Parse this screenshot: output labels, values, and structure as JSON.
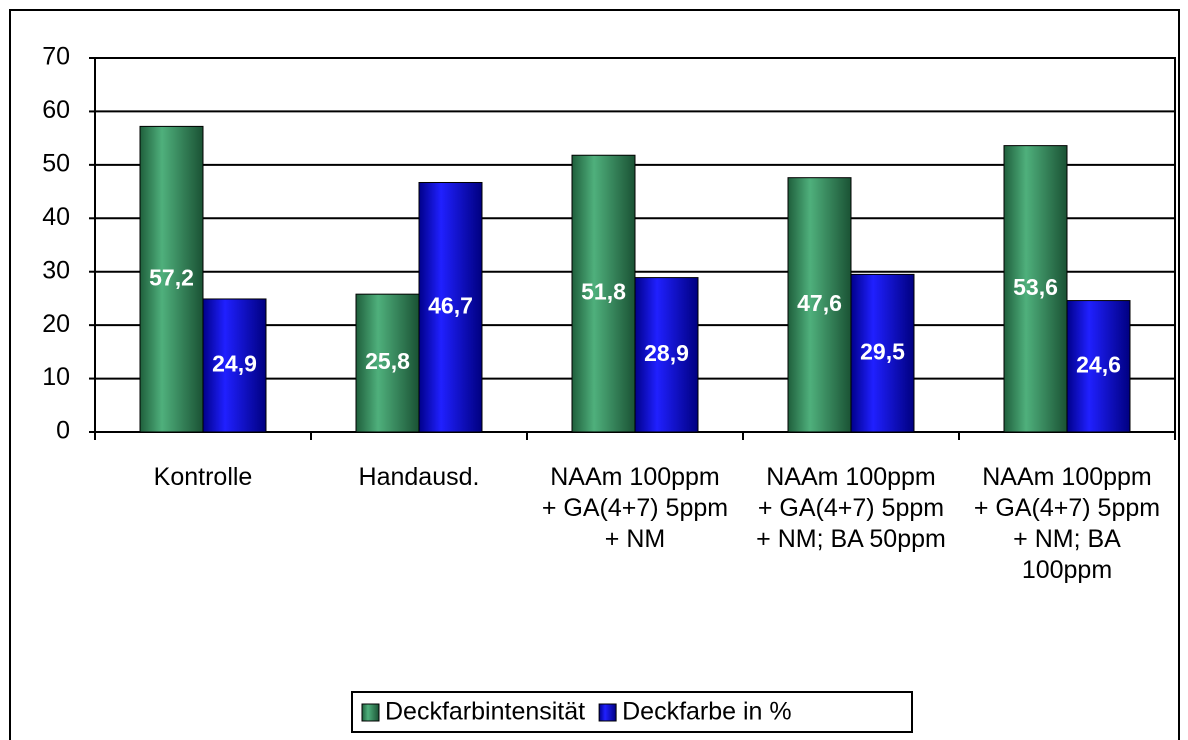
{
  "chart_data": {
    "type": "bar",
    "categories": [
      "Kontrolle",
      "Handausd.",
      "NAAm 100ppm + GA(4+7) 5ppm + NM",
      "NAAm 100ppm + GA(4+7) 5ppm + NM; BA 50ppm",
      "NAAm 100ppm + GA(4+7) 5ppm + NM; BA 100ppm"
    ],
    "series": [
      {
        "name": "Deckfarbintensität",
        "color": "#2e8b57",
        "values": [
          57.2,
          25.8,
          51.8,
          47.6,
          53.6
        ],
        "value_labels": [
          "57,2",
          "25,8",
          "51,8",
          "47,6",
          "53,6"
        ]
      },
      {
        "name": "Deckfarbe in %",
        "color": "#0000cc",
        "values": [
          24.9,
          46.7,
          28.9,
          29.5,
          24.6
        ],
        "value_labels": [
          "24,9",
          "46,7",
          "28,9",
          "29,5",
          "24,6"
        ]
      }
    ],
    "ylim": [
      0,
      70
    ],
    "yticks": [
      0,
      10,
      20,
      30,
      40,
      50,
      60,
      70
    ],
    "grid": true,
    "legend": "bottom"
  }
}
